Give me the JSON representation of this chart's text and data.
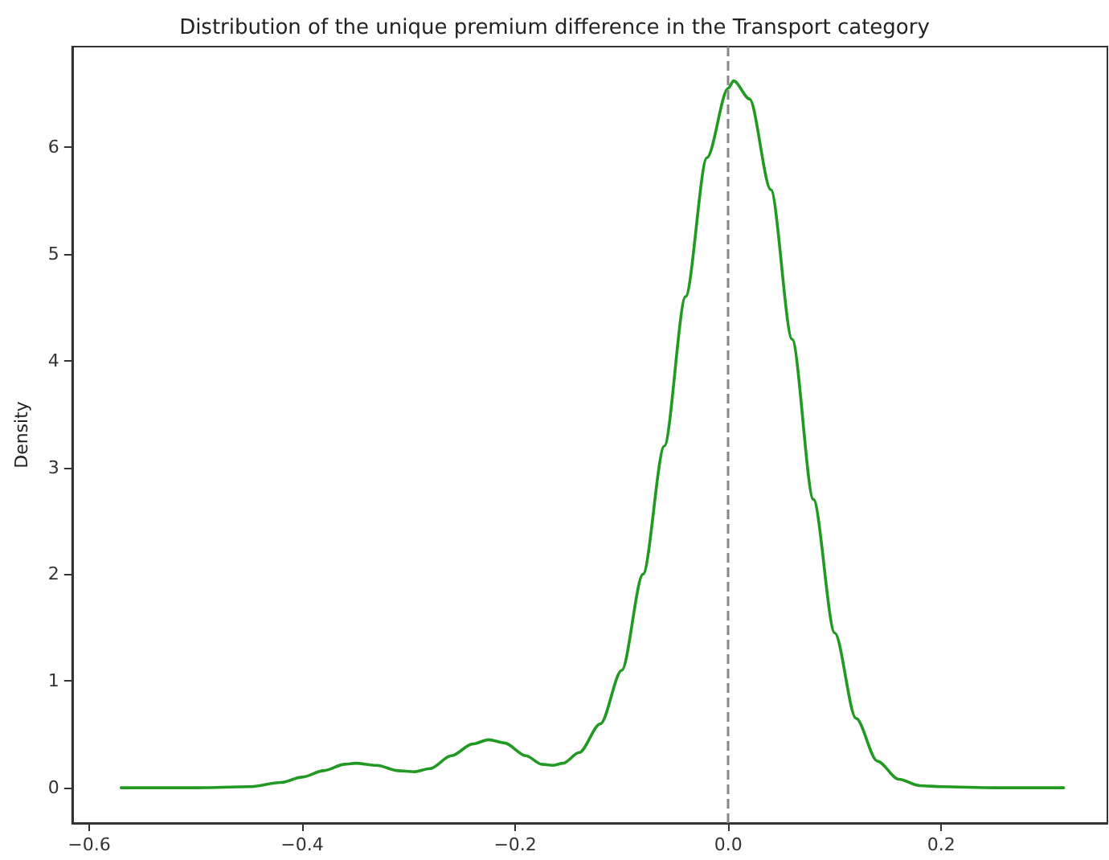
{
  "chart_data": {
    "type": "line",
    "title": "Distribution of the unique premium difference in the Transport category",
    "ylabel": "Density",
    "series": [
      {
        "color": "#229922",
        "x": [
          -0.57,
          -0.5,
          -0.45,
          -0.42,
          -0.4,
          -0.38,
          -0.36,
          -0.35,
          -0.33,
          -0.31,
          -0.295,
          -0.28,
          -0.26,
          -0.24,
          -0.225,
          -0.21,
          -0.19,
          -0.175,
          -0.165,
          -0.155,
          -0.14,
          -0.12,
          -0.1,
          -0.08,
          -0.06,
          -0.04,
          -0.02,
          0,
          0.005,
          0.02,
          0.04,
          0.06,
          0.08,
          0.1,
          0.12,
          0.14,
          0.16,
          0.18,
          0.2,
          0.25,
          0.315
        ],
        "values": [
          0,
          0,
          0.01,
          0.05,
          0.1,
          0.16,
          0.22,
          0.23,
          0.21,
          0.16,
          0.15,
          0.18,
          0.3,
          0.41,
          0.45,
          0.42,
          0.3,
          0.22,
          0.21,
          0.23,
          0.33,
          0.6,
          1.1,
          2.0,
          3.2,
          4.6,
          5.9,
          6.55,
          6.62,
          6.45,
          5.6,
          4.2,
          2.7,
          1.45,
          0.65,
          0.25,
          0.08,
          0.02,
          0.01,
          0,
          0
        ]
      }
    ],
    "xlim": [
      -0.616,
      0.356
    ],
    "ylim": [
      -0.33,
      6.94
    ],
    "xticks": [
      {
        "value": -0.6,
        "label": "−0.6"
      },
      {
        "value": -0.4,
        "label": "−0.4"
      },
      {
        "value": -0.2,
        "label": "−0.2"
      },
      {
        "value": 0,
        "label": "0.0"
      },
      {
        "value": 0.2,
        "label": "0.2"
      }
    ],
    "yticks": [
      0,
      1,
      2,
      3,
      4,
      5,
      6
    ],
    "ref_lines": [
      {
        "axis": "x",
        "value": 0,
        "color": "#888888",
        "line_style": "dashed"
      }
    ],
    "grid": false,
    "marker": "none",
    "line_style": "solid"
  }
}
